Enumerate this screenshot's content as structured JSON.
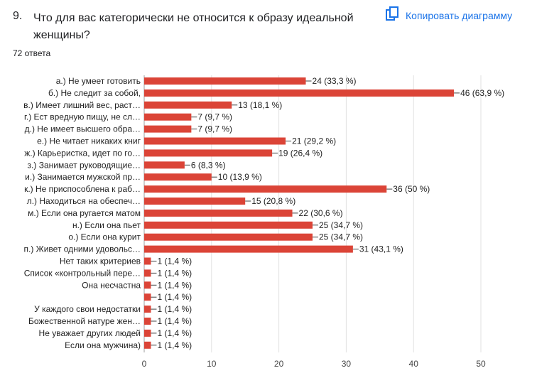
{
  "question": {
    "number": "9.",
    "title": "Что для вас категорически не относится к образу идеальной женщины?",
    "copy_label": "Копировать диаграмму",
    "responses": "72 ответа"
  },
  "colors": {
    "bar": "#db4437",
    "accent": "#1a73e8",
    "grid": "#e0e0e0",
    "axis": "#9e9e9e"
  },
  "chart_data": {
    "type": "bar",
    "orientation": "horizontal",
    "categories": [
      "а.) Не умеет готовить",
      "б.) Не следит за собой,",
      "в.) Имеет лишний вес, раст…",
      "г.) Ест вредную пищу, не сл…",
      "д.) Не имеет высшего обра…",
      "е.) Не читает никаких книг",
      "ж.) Карьеристка, идет по го…",
      "з.) Занимает руководящие…",
      "и.) Занимается мужской пр…",
      "к.) Не приспособлена к раб…",
      "л.) Находиться на обеспеч…",
      "м.) Если она ругается матом",
      "н.) Если она пьет",
      "о.) Если она курит",
      "п.) Живет одними удовольс…",
      "Нет таких критериев",
      "Список «контрольный пере…",
      "Она несчастна",
      "",
      "У каждого свои недостатки",
      "Божественной натуре жен…",
      "Не уважает других людей",
      "Если она мужчина)"
    ],
    "values": [
      24,
      46,
      13,
      7,
      7,
      21,
      19,
      6,
      10,
      36,
      15,
      22,
      25,
      25,
      31,
      1,
      1,
      1,
      1,
      1,
      1,
      1,
      1
    ],
    "data_labels": [
      "24 (33,3 %)",
      "46 (63,9 %)",
      "13 (18,1 %)",
      "7 (9,7 %)",
      "7 (9,7 %)",
      "21 (29,2 %)",
      "19 (26,4 %)",
      "6 (8,3 %)",
      "10 (13,9 %)",
      "36 (50 %)",
      "15 (20,8 %)",
      "22 (30,6 %)",
      "25 (34,7 %)",
      "25 (34,7 %)",
      "31 (43,1 %)",
      "1 (1,4 %)",
      "1 (1,4 %)",
      "1 (1,4 %)",
      "1 (1,4 %)",
      "1 (1,4 %)",
      "1 (1,4 %)",
      "1 (1,4 %)",
      "1 (1,4 %)"
    ],
    "xlim": [
      0,
      50
    ],
    "xticks": [
      0,
      10,
      20,
      30,
      40,
      50
    ],
    "grid": true,
    "legend": "none"
  }
}
